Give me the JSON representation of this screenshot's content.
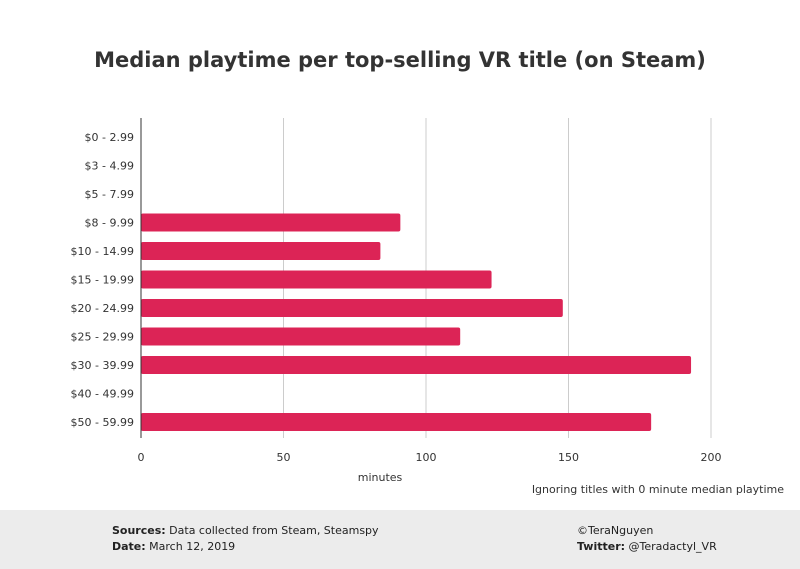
{
  "chart_data": {
    "type": "bar",
    "orientation": "horizontal",
    "title": "Median playtime per top-selling VR title (on Steam)",
    "xlabel": "minutes",
    "ylabel": "",
    "xlim": [
      0,
      200
    ],
    "xticks": [
      0,
      50,
      100,
      150,
      200
    ],
    "grid": true,
    "categories": [
      "$0 - 2.99",
      "$3 - 4.99",
      "$5 - 7.99",
      "$8 - 9.99",
      "$10 - 14.99",
      "$15 - 19.99",
      "$20 - 24.99",
      "$25 - 29.99",
      "$30 - 39.99",
      "$40 - 49.99",
      "$50 - 59.99"
    ],
    "values": [
      0,
      0,
      0,
      91,
      84,
      123,
      148,
      112,
      193,
      0,
      179
    ],
    "bar_color": "#dc2456",
    "note": "Ignoring titles with 0 minute median playtime"
  },
  "footer": {
    "sources_label": "Sources:",
    "sources_text": "Data collected from Steam, Steamspy",
    "date_label": "Date:",
    "date_text": "March 12, 2019",
    "credit": "©TeraNguyen",
    "twitter_label": "Twitter:",
    "twitter_handle": "@Teradactyl_VR"
  }
}
